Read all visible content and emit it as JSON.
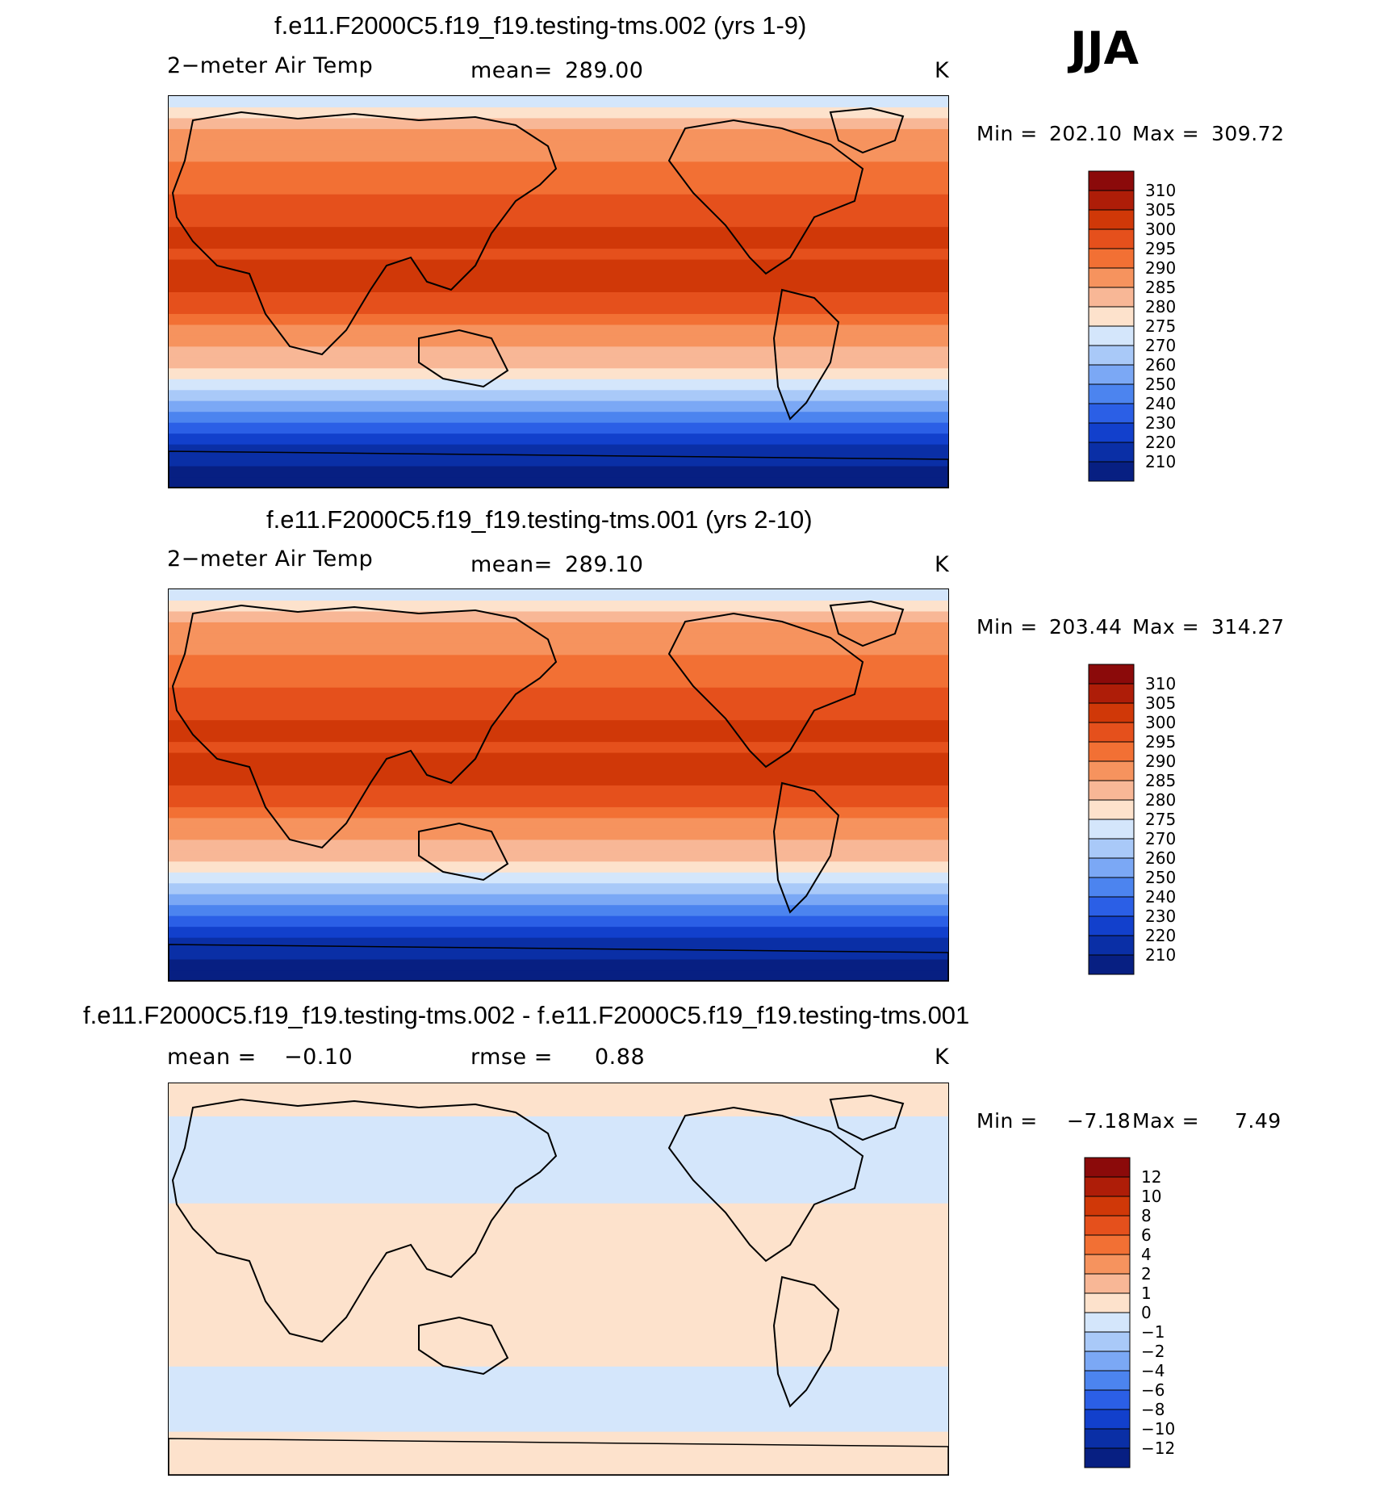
{
  "season": "JJA",
  "chart_data": [
    {
      "type": "heatmap",
      "title": "f.e11.F2000C5.f19_f19.testing-tms.002 (yrs 1-9)",
      "variable": "2−meter Air Temp",
      "stat_label": "mean=",
      "stat_value": "289.00",
      "units": "K",
      "min_label": "Min =",
      "min_value": "202.10",
      "max_label": "Max =",
      "max_value": "309.72",
      "colorbar_labels": [
        "310",
        "305",
        "300",
        "295",
        "290",
        "285",
        "280",
        "275",
        "270",
        "260",
        "250",
        "240",
        "230",
        "220",
        "210"
      ],
      "colorbar_colors": [
        "#8b0a0a",
        "#ae1d08",
        "#d03808",
        "#e5501c",
        "#f27034",
        "#f6935e",
        "#f8b796",
        "#fde2cc",
        "#d4e6fb",
        "#a9c9f8",
        "#7ba8f5",
        "#4c84ef",
        "#2b5fe6",
        "#1240cc",
        "#0a2fa6",
        "#071f82"
      ],
      "zonal_profile": [
        206,
        206,
        210,
        216,
        224,
        232,
        240,
        252,
        262,
        270,
        276,
        280,
        284,
        286,
        289,
        292,
        296,
        298,
        300,
        301,
        300,
        299,
        300,
        300,
        299,
        297,
        296,
        293,
        291,
        290,
        289,
        288,
        285,
        280,
        276,
        272
      ],
      "zonal_profile_lat": [
        -90,
        -85,
        -80,
        -75,
        -70,
        -65,
        -60,
        -55,
        -50,
        -45,
        -40,
        -35,
        -30,
        -25,
        -20,
        -15,
        -10,
        -5,
        0,
        5,
        10,
        15,
        20,
        25,
        30,
        35,
        40,
        45,
        50,
        55,
        60,
        65,
        70,
        75,
        80,
        85
      ]
    },
    {
      "type": "heatmap",
      "title": "f.e11.F2000C5.f19_f19.testing-tms.001 (yrs 2-10)",
      "variable": "2−meter Air Temp",
      "stat_label": "mean=",
      "stat_value": "289.10",
      "units": "K",
      "min_label": "Min =",
      "min_value": "203.44",
      "max_label": "Max =",
      "max_value": "314.27",
      "colorbar_labels": [
        "310",
        "305",
        "300",
        "295",
        "290",
        "285",
        "280",
        "275",
        "270",
        "260",
        "250",
        "240",
        "230",
        "220",
        "210"
      ],
      "colorbar_colors": [
        "#8b0a0a",
        "#ae1d08",
        "#d03808",
        "#e5501c",
        "#f27034",
        "#f6935e",
        "#f8b796",
        "#fde2cc",
        "#d4e6fb",
        "#a9c9f8",
        "#7ba8f5",
        "#4c84ef",
        "#2b5fe6",
        "#1240cc",
        "#0a2fa6",
        "#071f82"
      ],
      "zonal_profile": [
        206,
        206,
        210,
        216,
        224,
        232,
        240,
        252,
        262,
        270,
        276,
        280,
        284,
        286,
        289,
        292,
        296,
        298,
        300,
        301,
        300,
        299,
        300,
        300,
        299,
        297,
        296,
        293,
        291,
        290,
        289,
        288,
        285,
        280,
        276,
        272
      ],
      "zonal_profile_lat": [
        -90,
        -85,
        -80,
        -75,
        -70,
        -65,
        -60,
        -55,
        -50,
        -45,
        -40,
        -35,
        -30,
        -25,
        -20,
        -15,
        -10,
        -5,
        0,
        5,
        10,
        15,
        20,
        25,
        30,
        35,
        40,
        45,
        50,
        55,
        60,
        65,
        70,
        75,
        80,
        85
      ]
    },
    {
      "type": "heatmap",
      "title": "f.e11.F2000C5.f19_f19.testing-tms.002 - f.e11.F2000C5.f19_f19.testing-tms.001",
      "stat_label": "mean =",
      "stat_value": "−0.10",
      "rmse_label": "rmse =",
      "rmse_value": "0.88",
      "units": "K",
      "min_label": "Min =",
      "min_value": "−7.18",
      "max_label": "Max =",
      "max_value": "7.49",
      "colorbar_labels": [
        "12",
        "10",
        "8",
        "6",
        "4",
        "2",
        "1",
        "0",
        "−1",
        "−2",
        "−4",
        "−6",
        "−8",
        "−10",
        "−12"
      ],
      "colorbar_colors": [
        "#8b0a0a",
        "#ae1d08",
        "#d03808",
        "#e5501c",
        "#f27034",
        "#f6935e",
        "#f8b796",
        "#fde2cc",
        "#d4e6fb",
        "#a9c9f8",
        "#7ba8f5",
        "#4c84ef",
        "#2b5fe6",
        "#1240cc",
        "#0a2fa6",
        "#071f82"
      ],
      "zonal_profile": [
        0.5,
        0.8,
        0.6,
        0.3,
        -0.2,
        -0.6,
        -0.4,
        -0.5,
        -0.3,
        -0.2,
        0.2,
        0.3,
        0.2,
        0.2,
        0.3,
        0.1,
        0.2,
        0.3,
        0.3,
        0.3,
        0.2,
        0.3,
        0.3,
        0.2,
        0.2,
        -0.3,
        -0.4,
        -0.5,
        -0.6,
        -0.4,
        -0.5,
        -0.4,
        -0.3,
        0.6,
        0.8,
        0.3
      ],
      "zonal_profile_lat": [
        -90,
        -85,
        -80,
        -75,
        -70,
        -65,
        -60,
        -55,
        -50,
        -45,
        -40,
        -35,
        -30,
        -25,
        -20,
        -15,
        -10,
        -5,
        0,
        5,
        10,
        15,
        20,
        25,
        30,
        35,
        40,
        45,
        50,
        55,
        60,
        65,
        70,
        75,
        80,
        85
      ]
    }
  ]
}
